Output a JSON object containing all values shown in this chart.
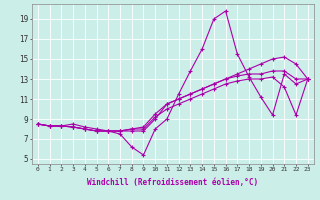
{
  "xlabel": "Windchill (Refroidissement éolien,°C)",
  "background_color": "#cceee8",
  "line_color": "#aa00aa",
  "xlim": [
    -0.5,
    23.5
  ],
  "ylim": [
    4.5,
    20.5
  ],
  "xticks": [
    0,
    1,
    2,
    3,
    4,
    5,
    6,
    7,
    8,
    9,
    10,
    11,
    12,
    13,
    14,
    15,
    16,
    17,
    18,
    19,
    20,
    21,
    22,
    23
  ],
  "yticks": [
    5,
    7,
    9,
    11,
    13,
    15,
    17,
    19
  ],
  "series": [
    [
      8.5,
      8.3,
      8.3,
      8.5,
      8.2,
      8.0,
      7.8,
      7.5,
      6.2,
      5.4,
      8.0,
      9.0,
      11.5,
      13.8,
      16.0,
      19.0,
      19.8,
      15.5,
      13.2,
      11.2,
      9.4,
      13.5,
      12.5,
      13.0
    ],
    [
      8.5,
      8.3,
      8.3,
      8.2,
      8.0,
      7.8,
      7.8,
      7.8,
      8.0,
      8.0,
      9.2,
      10.0,
      10.5,
      11.0,
      11.5,
      12.0,
      12.5,
      12.8,
      13.0,
      13.0,
      13.2,
      12.2,
      9.4,
      13.0
    ],
    [
      8.5,
      8.3,
      8.3,
      8.2,
      8.0,
      7.8,
      7.8,
      7.8,
      8.0,
      8.2,
      9.5,
      10.5,
      11.0,
      11.5,
      12.0,
      12.5,
      13.0,
      13.5,
      14.0,
      14.5,
      15.0,
      15.2,
      14.5,
      13.0
    ],
    [
      8.5,
      8.3,
      8.3,
      8.2,
      8.0,
      7.8,
      7.8,
      7.8,
      7.8,
      7.8,
      9.0,
      10.5,
      11.0,
      11.5,
      12.0,
      12.5,
      13.0,
      13.3,
      13.5,
      13.5,
      13.8,
      13.8,
      13.0,
      13.0
    ]
  ]
}
